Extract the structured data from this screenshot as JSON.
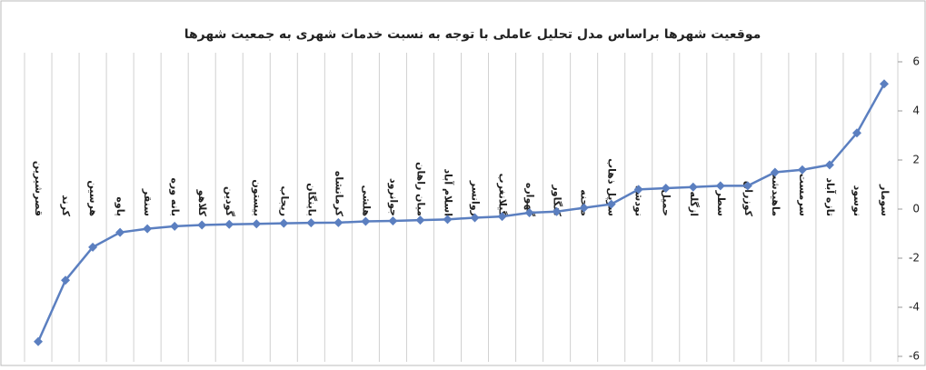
{
  "chart_data": {
    "type": "line",
    "title": "موقعیت شهرها براساس مدل تحلیل عاملی با توجه به نسبت خدمات شهری به جمعیت شهرها",
    "categories": [
      "قصرشیرین",
      "کرند",
      "هرسین",
      "پاوه",
      "سنقر",
      "بانه وره",
      "کلاهو",
      "گودین",
      "بیستون",
      "ریجاب",
      "باینگان",
      "کرمانشاه",
      "هلشی",
      "جوانرود",
      "میان راهان",
      "اسلام آباد",
      "روانسر",
      "گیلانغرب",
      "گهواره",
      "کنگاور",
      "صحنه",
      "سرپل ذهاب",
      "نودشه",
      "حمیل",
      "ازگله",
      "سطر",
      "کوزران",
      "ماهیدشت",
      "سرمست",
      "تازه آباد",
      "نوسود",
      "سومار"
    ],
    "series": [
      {
        "color": "#5b7fc0",
        "values": [
          -5.4,
          -2.9,
          -1.55,
          -0.95,
          -0.8,
          -0.7,
          -0.65,
          -0.62,
          -0.6,
          -0.58,
          -0.56,
          -0.55,
          -0.5,
          -0.48,
          -0.45,
          -0.42,
          -0.35,
          -0.3,
          -0.15,
          -0.1,
          0.05,
          0.2,
          0.8,
          0.85,
          0.9,
          0.95,
          0.95,
          1.5,
          1.6,
          1.8,
          3.1,
          5.1
        ]
      }
    ],
    "ylim": [
      -6,
      6
    ],
    "yticks": [
      -6,
      -4,
      -2,
      0,
      2,
      4,
      6
    ],
    "grid": true
  }
}
